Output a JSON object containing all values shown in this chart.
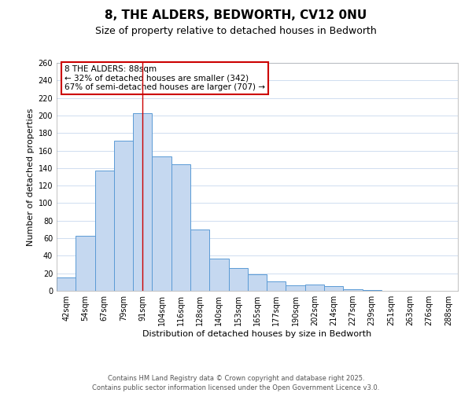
{
  "title": "8, THE ALDERS, BEDWORTH, CV12 0NU",
  "subtitle": "Size of property relative to detached houses in Bedworth",
  "xlabel": "Distribution of detached houses by size in Bedworth",
  "ylabel": "Number of detached properties",
  "bar_labels": [
    "42sqm",
    "54sqm",
    "67sqm",
    "79sqm",
    "91sqm",
    "104sqm",
    "116sqm",
    "128sqm",
    "140sqm",
    "153sqm",
    "165sqm",
    "177sqm",
    "190sqm",
    "202sqm",
    "214sqm",
    "227sqm",
    "239sqm",
    "251sqm",
    "263sqm",
    "276sqm",
    "288sqm"
  ],
  "bar_values": [
    15,
    63,
    137,
    171,
    203,
    153,
    144,
    70,
    37,
    26,
    19,
    11,
    6,
    7,
    5,
    2,
    1,
    0,
    0,
    0,
    0
  ],
  "bar_color": "#c5d8f0",
  "bar_edge_color": "#5b9bd5",
  "ylim": [
    0,
    260
  ],
  "yticks": [
    0,
    20,
    40,
    60,
    80,
    100,
    120,
    140,
    160,
    180,
    200,
    220,
    240,
    260
  ],
  "vline_x_index": 4,
  "vline_color": "#cc0000",
  "annotation_title": "8 THE ALDERS: 88sqm",
  "annotation_line1": "← 32% of detached houses are smaller (342)",
  "annotation_line2": "67% of semi-detached houses are larger (707) →",
  "annotation_box_color": "#cc0000",
  "background_color": "#ffffff",
  "grid_color": "#c8d8ee",
  "footer1": "Contains HM Land Registry data © Crown copyright and database right 2025.",
  "footer2": "Contains public sector information licensed under the Open Government Licence v3.0.",
  "title_fontsize": 11,
  "subtitle_fontsize": 9,
  "axis_label_fontsize": 8,
  "tick_fontsize": 7,
  "annotation_fontsize": 7.5,
  "footer_fontsize": 6
}
